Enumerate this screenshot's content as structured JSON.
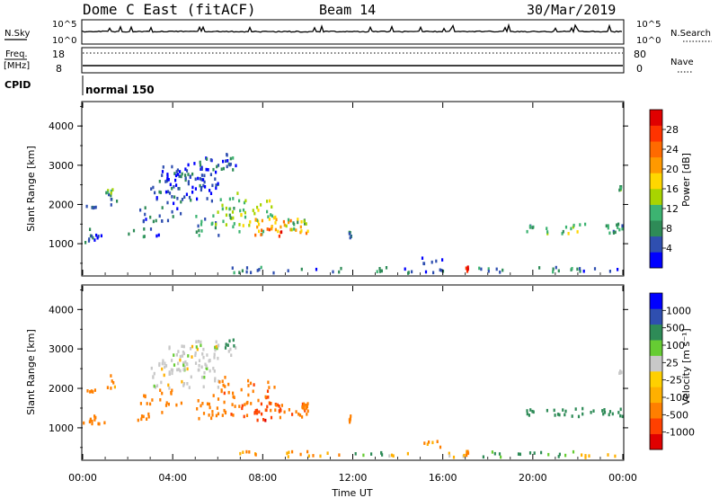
{
  "header": {
    "station": "Dome C East (fitACF)",
    "beam": "Beam 14",
    "date": "30/Mar/2019"
  },
  "status_panels": {
    "nsky_label": "N.Sky",
    "nsearch_label": "N.Search",
    "noise_ticks": [
      "10^5",
      "10^0"
    ],
    "freq_label_1": "Freq.",
    "freq_label_2": "[MHz]",
    "freq_ticks": [
      "18",
      "8"
    ],
    "nave_label": "Nave",
    "nave_ticks": [
      "80",
      "0"
    ],
    "cpid_label": "CPID",
    "cpid_value": "normal 150"
  },
  "colors": {
    "power": [
      "#0000ff",
      "#2f4fb0",
      "#2e8b57",
      "#3cb371",
      "#a8d400",
      "#ffd700",
      "#ff9900",
      "#ff6a00",
      "#ff3300",
      "#e00000"
    ],
    "velocity": [
      "#e00000",
      "#ff4000",
      "#ff7f00",
      "#ffb000",
      "#ffd000",
      "#c8c8c8",
      "#66cc33",
      "#2e8b57",
      "#2f4fb0",
      "#0000ff"
    ],
    "ground_scatter": "#bebebe"
  },
  "chart_data": [
    {
      "type": "heatmap",
      "name": "power",
      "xlabel": "",
      "ylabel": "Slant Range [km]",
      "x_range": [
        0,
        24
      ],
      "ylim": [
        200,
        4600
      ],
      "yticks": [
        "1000",
        "2000",
        "3000",
        "4000"
      ],
      "colorbar": {
        "label": "Power [dB]",
        "ticks": [
          "4",
          "8",
          "12",
          "16",
          "20",
          "24",
          "28"
        ],
        "range": [
          0,
          32
        ]
      },
      "cells": [
        [
          0.0,
          1.0,
          1200,
          1000,
          6
        ],
        [
          0.25,
          0.8,
          1050,
          1380,
          4
        ],
        [
          0.1,
          0.6,
          1900,
          1950,
          6
        ],
        [
          1.0,
          1.5,
          1950,
          2350,
          8
        ],
        [
          1.0,
          1.3,
          2250,
          2380,
          10
        ],
        [
          2.0,
          3.5,
          1150,
          1400,
          6
        ],
        [
          2.5,
          4.5,
          1550,
          1950,
          6
        ],
        [
          3.0,
          6.0,
          2000,
          2800,
          5
        ],
        [
          3.5,
          6.0,
          2400,
          3100,
          4
        ],
        [
          5.0,
          6.0,
          1200,
          1700,
          9
        ],
        [
          5.5,
          7.0,
          1300,
          1900,
          12
        ],
        [
          6.0,
          7.0,
          1850,
          2300,
          14
        ],
        [
          7.0,
          8.0,
          1200,
          1600,
          15
        ],
        [
          7.0,
          8.5,
          1600,
          2200,
          14
        ],
        [
          7.5,
          9.0,
          1300,
          1700,
          19
        ],
        [
          8.5,
          10.0,
          1250,
          1600,
          22
        ],
        [
          7.6,
          8.8,
          1150,
          1450,
          26
        ],
        [
          9.0,
          10.0,
          1300,
          1650,
          14
        ],
        [
          9.3,
          10.1,
          1400,
          1600,
          12
        ],
        [
          11.8,
          11.9,
          1100,
          1300,
          6
        ],
        [
          19.7,
          20.0,
          1250,
          1450,
          9
        ],
        [
          20.5,
          22.0,
          1250,
          1450,
          14
        ],
        [
          21.0,
          24.0,
          1300,
          1500,
          10
        ],
        [
          23.3,
          24.0,
          1250,
          1500,
          8
        ],
        [
          5.0,
          6.8,
          2800,
          3200,
          5
        ],
        [
          6.3,
          6.7,
          3000,
          3300,
          8
        ],
        [
          4.0,
          5.0,
          2700,
          2900,
          4
        ],
        [
          23.8,
          23.9,
          2350,
          2450,
          10
        ],
        [
          15.0,
          16.0,
          450,
          650,
          4
        ],
        [
          17.0,
          17.1,
          280,
          400,
          28
        ],
        [
          17.5,
          22.0,
          250,
          400,
          8
        ],
        [
          6.5,
          11.5,
          250,
          400,
          6
        ],
        [
          12.0,
          13.5,
          280,
          400,
          12
        ],
        [
          13.5,
          17.0,
          240,
          360,
          5
        ],
        [
          22.0,
          24.0,
          240,
          360,
          6
        ]
      ]
    },
    {
      "type": "heatmap",
      "name": "velocity",
      "xlabel": "Time UT",
      "ylabel": "Slant Range [km]",
      "x_range": [
        0,
        24
      ],
      "xticks": [
        "00:00",
        "04:00",
        "08:00",
        "12:00",
        "16:00",
        "20:00",
        "00:00"
      ],
      "ylim": [
        200,
        4600
      ],
      "yticks": [
        "1000",
        "2000",
        "3000",
        "4000"
      ],
      "colorbar": {
        "label": "Velocity [m s⁻¹]",
        "ticks": [
          "-1000",
          "-500",
          "-100",
          "-25",
          "25",
          "100",
          "500",
          "1000"
        ]
      },
      "cells": [
        [
          0.0,
          1.0,
          1200,
          1000,
          -300
        ],
        [
          0.25,
          0.8,
          1050,
          1380,
          -400
        ],
        [
          0.1,
          0.6,
          1900,
          1950,
          -200
        ],
        [
          1.0,
          1.5,
          1950,
          2350,
          -150
        ],
        [
          2.0,
          3.5,
          1150,
          1400,
          -300
        ],
        [
          2.5,
          4.5,
          1550,
          1950,
          -200
        ],
        [
          3.0,
          6.0,
          2000,
          2800,
          0
        ],
        [
          3.5,
          6.0,
          2400,
          3100,
          0
        ],
        [
          5.0,
          6.0,
          1200,
          1700,
          -300
        ],
        [
          5.5,
          7.0,
          1300,
          1900,
          -400
        ],
        [
          6.0,
          7.0,
          1850,
          2300,
          -200
        ],
        [
          7.0,
          8.0,
          1200,
          1600,
          -600
        ],
        [
          7.0,
          8.5,
          1600,
          2200,
          -400
        ],
        [
          7.5,
          9.0,
          1300,
          1700,
          -500
        ],
        [
          8.5,
          10.0,
          1250,
          1600,
          -500
        ],
        [
          7.6,
          8.8,
          1150,
          1450,
          -800
        ],
        [
          9.0,
          10.0,
          1300,
          1650,
          -300
        ],
        [
          9.3,
          10.1,
          1400,
          1600,
          -150
        ],
        [
          11.8,
          11.9,
          1100,
          1300,
          -200
        ],
        [
          19.7,
          20.0,
          1250,
          1450,
          200
        ],
        [
          20.5,
          22.0,
          1250,
          1450,
          250
        ],
        [
          21.0,
          24.0,
          1300,
          1500,
          200
        ],
        [
          23.3,
          24.0,
          1250,
          1500,
          300
        ],
        [
          5.0,
          6.8,
          2800,
          3200,
          0
        ],
        [
          6.3,
          6.7,
          3000,
          3300,
          200
        ],
        [
          4.0,
          5.0,
          2700,
          2900,
          0
        ],
        [
          23.8,
          23.9,
          2350,
          2450,
          0
        ],
        [
          15.0,
          16.0,
          450,
          650,
          -100
        ],
        [
          17.0,
          17.1,
          280,
          400,
          -100
        ],
        [
          17.5,
          22.0,
          250,
          400,
          100
        ],
        [
          6.5,
          11.5,
          250,
          400,
          -100
        ],
        [
          12.0,
          13.5,
          280,
          400,
          150
        ],
        [
          13.5,
          17.0,
          240,
          360,
          -50
        ],
        [
          22.0,
          24.0,
          240,
          360,
          -50
        ]
      ]
    }
  ]
}
